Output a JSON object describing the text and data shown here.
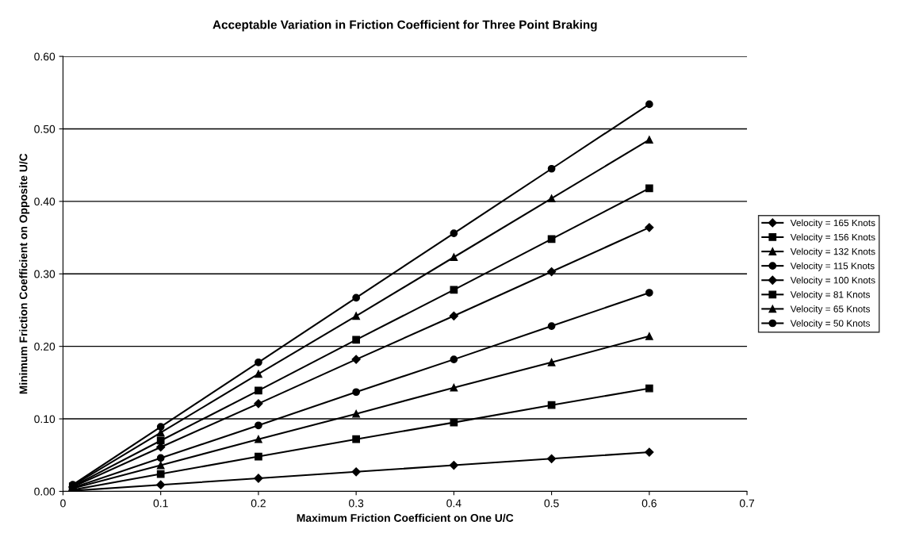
{
  "chart_data": {
    "type": "line",
    "title": "Acceptable Variation in Friction Coefficient for Three Point Braking",
    "xlabel": "Maximum Friction Coefficient on One U/C",
    "ylabel": "Minimum Friction Coefficient on Opposite U/C",
    "x": [
      0.01,
      0.1,
      0.2,
      0.3,
      0.4,
      0.5,
      0.6
    ],
    "series": [
      {
        "name": "Velocity = 165 Knots",
        "color": "#000000",
        "marker": "diamond",
        "values": [
          0.001,
          0.009,
          0.018,
          0.027,
          0.036,
          0.045,
          0.054
        ]
      },
      {
        "name": "Velocity = 156 Knots",
        "color": "#000000",
        "marker": "square",
        "values": [
          0.002,
          0.024,
          0.048,
          0.072,
          0.095,
          0.119,
          0.142
        ]
      },
      {
        "name": "Velocity = 132 Knots",
        "color": "#000000",
        "marker": "triangle",
        "values": [
          0.004,
          0.036,
          0.072,
          0.107,
          0.143,
          0.178,
          0.214
        ]
      },
      {
        "name": "Velocity = 115 Knots",
        "color": "#000000",
        "marker": "circle",
        "values": [
          0.005,
          0.046,
          0.091,
          0.137,
          0.182,
          0.228,
          0.274
        ]
      },
      {
        "name": "Velocity = 100 Knots",
        "color": "#000000",
        "marker": "diamond",
        "values": [
          0.006,
          0.061,
          0.121,
          0.182,
          0.242,
          0.303,
          0.364
        ]
      },
      {
        "name": "Velocity = 81 Knots",
        "color": "#000000",
        "marker": "square",
        "values": [
          0.007,
          0.07,
          0.139,
          0.209,
          0.278,
          0.348,
          0.418
        ]
      },
      {
        "name": "Velocity = 65 Knots",
        "color": "#000000",
        "marker": "triangle",
        "values": [
          0.008,
          0.081,
          0.162,
          0.242,
          0.323,
          0.404,
          0.485
        ]
      },
      {
        "name": "Velocity = 50 Knots",
        "color": "#000000",
        "marker": "circle",
        "values": [
          0.009,
          0.089,
          0.178,
          0.267,
          0.356,
          0.445,
          0.534
        ]
      }
    ],
    "xlim": [
      0,
      0.7
    ],
    "xticks": [
      0,
      0.1,
      0.2,
      0.3,
      0.4,
      0.5,
      0.6,
      0.7
    ],
    "ylim": [
      0,
      0.6
    ],
    "yticks": [
      {
        "value": 0,
        "label": "0.00"
      },
      {
        "value": 0.1,
        "label": "0.10"
      },
      {
        "value": 0.2,
        "label": "0.20"
      },
      {
        "value": 0.3,
        "label": "0.30"
      },
      {
        "value": 0.4,
        "label": "0.40"
      },
      {
        "value": 0.5,
        "label": "0.50"
      },
      {
        "value": 0.6,
        "label": "0.60"
      }
    ],
    "grid": "y",
    "legend": "right",
    "line_style": "solid"
  }
}
